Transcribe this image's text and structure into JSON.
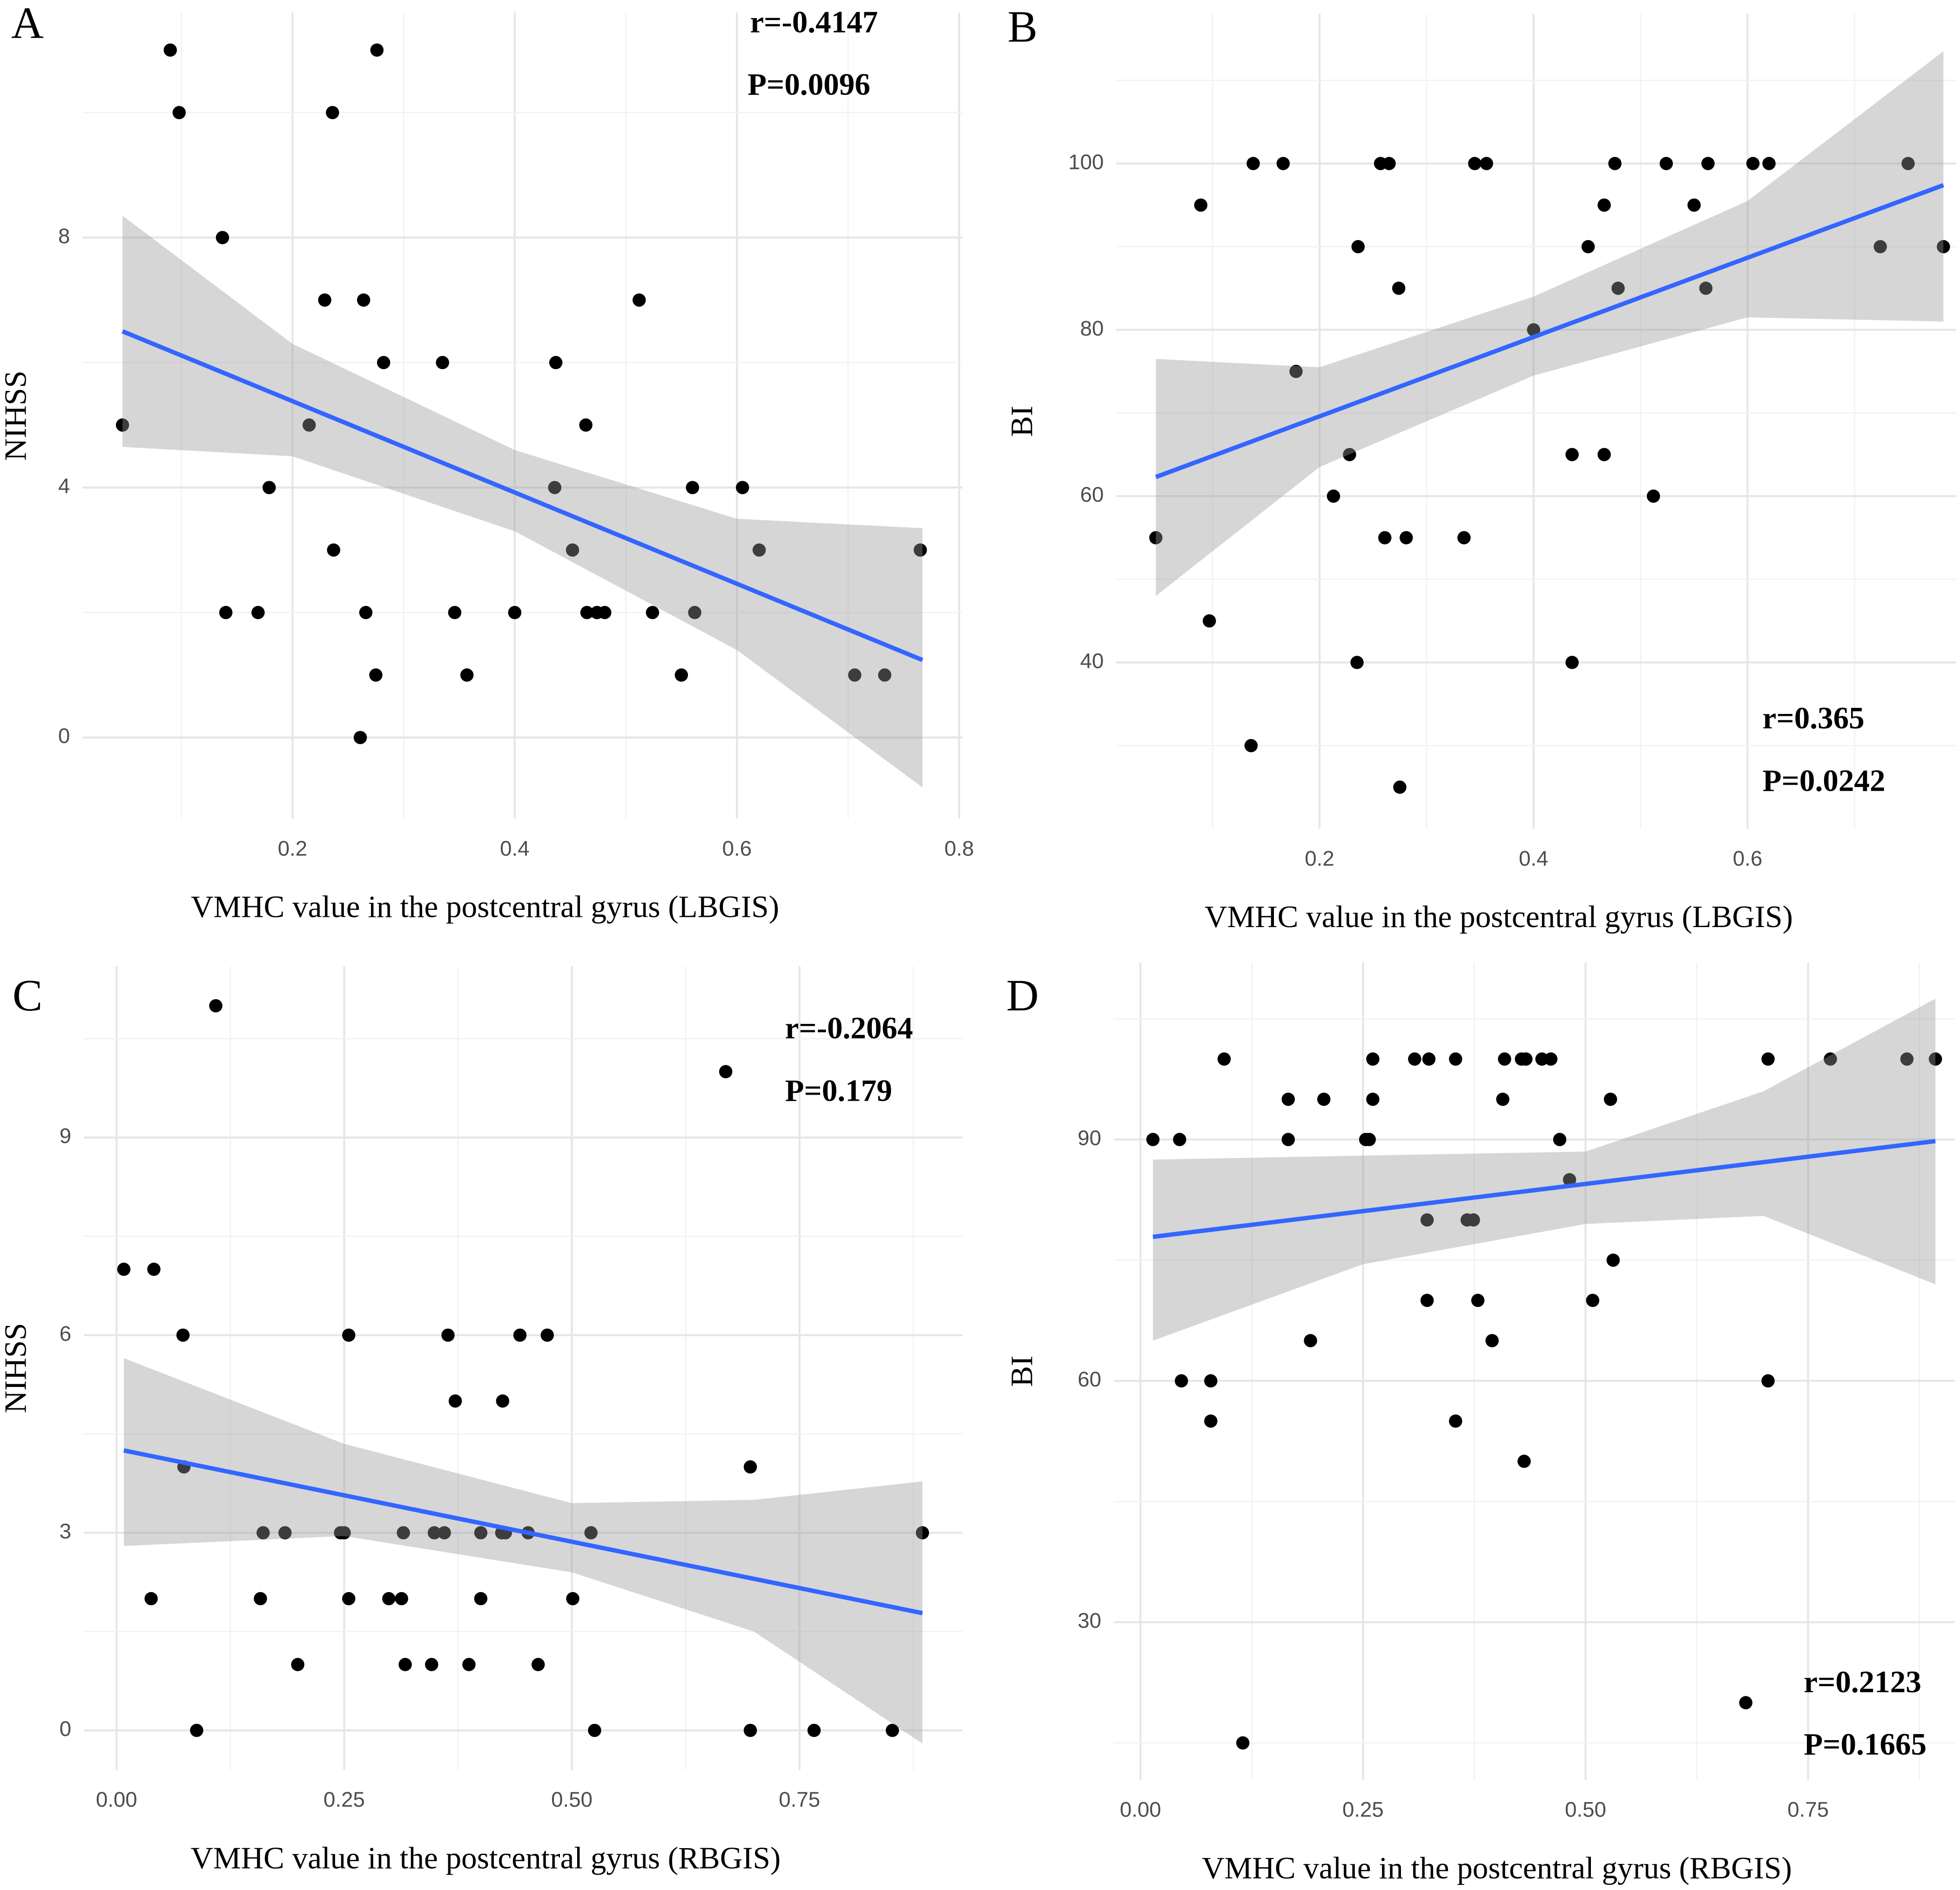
{
  "chart_data": [
    {
      "type": "scatter",
      "panel_label": "A",
      "xlabel": "VMHC value in the postcentral gyrus (LBGIS)",
      "ylabel": "NIHSS",
      "annotations": [
        "r=-0.4147",
        "P=0.0096"
      ],
      "x": [
        0.047,
        0.09,
        0.098,
        0.137,
        0.14,
        0.169,
        0.179,
        0.215,
        0.229,
        0.236,
        0.237,
        0.261,
        0.264,
        0.266,
        0.275,
        0.276,
        0.282,
        0.335,
        0.346,
        0.357,
        0.4,
        0.436,
        0.437,
        0.452,
        0.464,
        0.465,
        0.474,
        0.481,
        0.512,
        0.524,
        0.55,
        0.56,
        0.562,
        0.605,
        0.62,
        0.706,
        0.733,
        0.765
      ],
      "y": [
        5,
        11,
        10,
        8,
        2,
        2,
        4,
        5,
        7,
        10,
        3,
        0,
        7,
        2,
        1,
        11,
        6,
        6,
        2,
        1,
        2,
        4,
        6,
        3,
        5,
        2,
        2,
        2,
        7,
        2,
        1,
        4,
        2,
        4,
        3,
        1,
        1,
        3
      ],
      "color": "#000000",
      "fit": {
        "x": [
          0.047,
          0.767
        ],
        "y": [
          6.5,
          1.24
        ],
        "color": "#3366ff"
      },
      "band": {
        "x": [
          0.047,
          0.2,
          0.4,
          0.6,
          0.767
        ],
        "lower": [
          4.65,
          4.5,
          3.3,
          1.4,
          -0.8
        ],
        "upper": [
          8.35,
          6.3,
          4.6,
          3.5,
          3.35
        ],
        "color": "#999999"
      },
      "xlim": [
        0.011,
        0.803
      ],
      "ylim": [
        -1.3,
        11.6
      ],
      "xticks": [
        0.2,
        0.4,
        0.6,
        0.8
      ],
      "yticks": [
        0,
        4,
        8
      ],
      "grid": true
    },
    {
      "type": "scatter",
      "panel_label": "B",
      "xlabel": "VMHC value in the postcentral gyrus (LBGIS)",
      "ylabel": "BI",
      "annotations": [
        "r=0.365",
        "P=0.0242"
      ],
      "x": [
        0.047,
        0.089,
        0.097,
        0.136,
        0.138,
        0.166,
        0.178,
        0.213,
        0.228,
        0.235,
        0.236,
        0.257,
        0.265,
        0.261,
        0.274,
        0.275,
        0.281,
        0.335,
        0.345,
        0.356,
        0.4,
        0.436,
        0.436,
        0.451,
        0.466,
        0.466,
        0.476,
        0.479,
        0.512,
        0.524,
        0.55,
        0.561,
        0.563,
        0.605,
        0.62,
        0.724,
        0.75,
        0.783
      ],
      "y": [
        55,
        95,
        45,
        30,
        100,
        100,
        75,
        60,
        65,
        40,
        90,
        100,
        100,
        55,
        85,
        25,
        55,
        55,
        100,
        100,
        80,
        40,
        65,
        90,
        65,
        95,
        100,
        85,
        60,
        100,
        95,
        85,
        100,
        100,
        100,
        90,
        100,
        90
      ],
      "color": "#000000",
      "fit": {
        "x": [
          0.047,
          0.783
        ],
        "y": [
          62.3,
          97.4
        ],
        "color": "#3366ff"
      },
      "band": {
        "x": [
          0.047,
          0.2,
          0.4,
          0.6,
          0.783
        ],
        "lower": [
          48,
          63.5,
          74.5,
          81.5,
          81
        ],
        "upper": [
          76.5,
          75.5,
          84,
          95.5,
          113.5
        ],
        "color": "#999999"
      },
      "xlim": [
        0.01,
        0.795
      ],
      "ylim": [
        20,
        118
      ],
      "xticks": [
        0.2,
        0.4,
        0.6
      ],
      "yticks": [
        40,
        60,
        80,
        100
      ],
      "grid": true
    },
    {
      "type": "scatter",
      "panel_label": "C",
      "xlabel": "VMHC value in the postcentral gyrus (RBGIS)",
      "ylabel": "NIHSS",
      "annotations": [
        "r=-0.2064",
        "P=0.179"
      ],
      "x": [
        0.008,
        0.041,
        0.038,
        0.073,
        0.074,
        0.088,
        0.109,
        0.158,
        0.161,
        0.185,
        0.199,
        0.246,
        0.25,
        0.255,
        0.255,
        0.299,
        0.313,
        0.315,
        0.317,
        0.346,
        0.349,
        0.36,
        0.364,
        0.372,
        0.387,
        0.4,
        0.4,
        0.424,
        0.423,
        0.427,
        0.443,
        0.452,
        0.463,
        0.473,
        0.501,
        0.521,
        0.525,
        0.669,
        0.696,
        0.696,
        0.766,
        0.852,
        0.885
      ],
      "y": [
        7,
        7,
        2,
        6,
        4,
        0,
        11,
        2,
        3,
        3,
        1,
        3,
        3,
        6,
        2,
        2,
        2,
        3,
        1,
        1,
        3,
        3,
        6,
        5,
        1,
        3,
        2,
        5,
        3,
        3,
        6,
        3,
        1,
        6,
        2,
        3,
        0,
        10,
        4,
        0,
        0,
        0,
        3
      ],
      "color": "#000000",
      "fit": {
        "x": [
          0.008,
          0.885
        ],
        "y": [
          4.25,
          1.78
        ],
        "color": "#3366ff"
      },
      "band": {
        "x": [
          0.008,
          0.25,
          0.5,
          0.7,
          0.885
        ],
        "lower": [
          2.8,
          2.95,
          2.4,
          1.5,
          -0.2
        ],
        "upper": [
          5.65,
          4.35,
          3.45,
          3.5,
          3.78
        ],
        "color": "#999999"
      },
      "xlim": [
        -0.036,
        0.929
      ],
      "ylim": [
        -0.6,
        11.6
      ],
      "xticks": [
        {
          "value": 0,
          "label": "0.00"
        },
        {
          "value": 0.25,
          "label": "0.25"
        },
        {
          "value": 0.5,
          "label": "0.50"
        },
        {
          "value": 0.75,
          "label": "0.75"
        }
      ],
      "yticks": [
        0,
        3,
        6,
        9
      ],
      "grid": true
    },
    {
      "type": "scatter",
      "panel_label": "D",
      "xlabel": "VMHC value in the postcentral gyrus (RBGIS)",
      "ylabel": "BI",
      "annotations": [
        "r=0.2123",
        "P=0.1665"
      ],
      "x": [
        0.014,
        0.044,
        0.046,
        0.079,
        0.079,
        0.094,
        0.115,
        0.166,
        0.166,
        0.191,
        0.206,
        0.253,
        0.257,
        0.261,
        0.261,
        0.308,
        0.322,
        0.322,
        0.324,
        0.354,
        0.354,
        0.367,
        0.374,
        0.379,
        0.395,
        0.407,
        0.409,
        0.428,
        0.433,
        0.431,
        0.451,
        0.461,
        0.471,
        0.482,
        0.508,
        0.528,
        0.531,
        0.68,
        0.705,
        0.705,
        0.775,
        0.861,
        0.893
      ],
      "y": [
        90,
        90,
        60,
        60,
        55,
        100,
        15,
        95,
        90,
        65,
        95,
        90,
        90,
        95,
        100,
        100,
        80,
        70,
        100,
        100,
        55,
        80,
        80,
        70,
        65,
        95,
        100,
        100,
        100,
        50,
        100,
        100,
        90,
        85,
        70,
        95,
        75,
        20,
        60,
        100,
        100,
        100,
        100
      ],
      "color": "#000000",
      "fit": {
        "x": [
          0.014,
          0.893
        ],
        "y": [
          77.9,
          89.8
        ],
        "color": "#3366ff"
      },
      "band": {
        "x": [
          0.014,
          0.25,
          0.5,
          0.7,
          0.893
        ],
        "lower": [
          65,
          74.5,
          79.5,
          80.5,
          72
        ],
        "upper": [
          87.5,
          88,
          88.5,
          96,
          107.5
        ],
        "color": "#999999"
      },
      "xlim": [
        -0.03,
        0.915
      ],
      "ylim": [
        10.4,
        112
      ],
      "xticks": [
        {
          "value": 0,
          "label": "0.00"
        },
        {
          "value": 0.25,
          "label": "0.25"
        },
        {
          "value": 0.5,
          "label": "0.50"
        },
        {
          "value": 0.75,
          "label": "0.75"
        }
      ],
      "yticks": [
        30,
        60,
        90
      ],
      "grid": true
    }
  ]
}
